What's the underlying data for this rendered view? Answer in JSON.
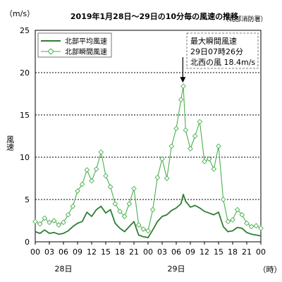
{
  "chart_data": {
    "type": "line",
    "title": "2019年1月28日～29日の10分毎の風速の推移",
    "source": "（北部消防署）",
    "y_unit": "（m/s）",
    "ylabel": "風速",
    "ylim": [
      0,
      25
    ],
    "y_ticks": [
      "0",
      "5",
      "10",
      "15",
      "20",
      "25"
    ],
    "x_unit": "（時）",
    "xlim_hours": [
      0,
      48
    ],
    "x_ticks": [
      {
        "hour": 0,
        "label": "00"
      },
      {
        "hour": 3,
        "label": "03"
      },
      {
        "hour": 6,
        "label": "06"
      },
      {
        "hour": 9,
        "label": "09"
      },
      {
        "hour": 12,
        "label": "12"
      },
      {
        "hour": 15,
        "label": "15"
      },
      {
        "hour": 18,
        "label": "18"
      },
      {
        "hour": 21,
        "label": "21"
      },
      {
        "hour": 24,
        "label": "00"
      },
      {
        "hour": 27,
        "label": "03"
      },
      {
        "hour": 30,
        "label": "06"
      },
      {
        "hour": 33,
        "label": "09"
      },
      {
        "hour": 36,
        "label": "12"
      },
      {
        "hour": 39,
        "label": "15"
      },
      {
        "hour": 42,
        "label": "18"
      },
      {
        "hour": 45,
        "label": "21"
      },
      {
        "hour": 48,
        "label": "00"
      }
    ],
    "day_labels": [
      {
        "hour": 6,
        "label": "28日"
      },
      {
        "hour": 30,
        "label": "29日"
      }
    ],
    "annotation": {
      "lines": [
        "最大瞬間風速",
        "29日07時26分",
        "北西の風 18.4m/s"
      ],
      "point_hour": 31.4,
      "point_value": 18.4
    },
    "series": [
      {
        "name": "北部平均風速",
        "color": "#2e7d32",
        "marker": "none",
        "x": [
          0,
          1,
          2,
          3,
          4,
          5,
          6,
          7,
          8,
          9,
          10,
          11,
          12,
          13,
          14,
          15,
          16,
          17,
          18,
          19,
          20,
          21,
          22,
          23,
          24,
          25,
          26,
          27,
          28,
          29,
          30,
          31,
          31.5,
          32,
          33,
          34,
          35,
          36,
          37,
          38,
          39,
          40,
          41,
          42,
          43,
          44,
          45,
          46,
          47,
          48
        ],
        "y": [
          1.2,
          1.0,
          1.4,
          1.0,
          1.1,
          0.9,
          1.0,
          1.3,
          1.8,
          2.2,
          2.4,
          3.5,
          3.0,
          3.8,
          4.2,
          3.4,
          3.8,
          2.2,
          1.6,
          1.2,
          1.8,
          2.4,
          0.8,
          0.6,
          0.5,
          1.4,
          2.4,
          3.0,
          3.2,
          3.7,
          4.0,
          4.5,
          5.6,
          4.8,
          4.1,
          4.3,
          4.0,
          3.6,
          3.4,
          3.2,
          3.5,
          1.8,
          1.2,
          1.3,
          1.7,
          1.6,
          1.1,
          0.9,
          0.8,
          0.7
        ]
      },
      {
        "name": "北部瞬間風速",
        "color": "#4caf50",
        "marker": "diamond",
        "x": [
          0,
          1,
          2,
          3,
          4,
          5,
          6,
          7,
          8,
          9,
          10,
          11,
          12,
          13,
          14,
          15,
          16,
          17,
          18,
          19,
          20,
          21,
          22,
          23,
          24,
          25,
          26,
          27,
          28,
          29,
          30,
          31,
          31.5,
          32,
          33,
          34,
          35,
          36,
          37,
          38,
          39,
          40,
          41,
          42,
          43,
          44,
          45,
          46,
          47,
          48
        ],
        "y": [
          2.4,
          2.1,
          2.8,
          2.3,
          2.5,
          2.0,
          2.3,
          3.2,
          4.2,
          6.0,
          6.8,
          8.5,
          7.2,
          8.6,
          10.6,
          7.8,
          6.5,
          4.5,
          3.6,
          3.0,
          4.5,
          6.3,
          2.0,
          1.5,
          1.3,
          3.8,
          7.6,
          9.8,
          7.5,
          11.3,
          13.4,
          16.8,
          18.4,
          13.2,
          11.0,
          12.5,
          14.2,
          9.5,
          9.8,
          8.6,
          11.3,
          5.0,
          2.4,
          2.6,
          3.8,
          3.2,
          2.2,
          1.8,
          1.9,
          1.6
        ]
      }
    ]
  }
}
